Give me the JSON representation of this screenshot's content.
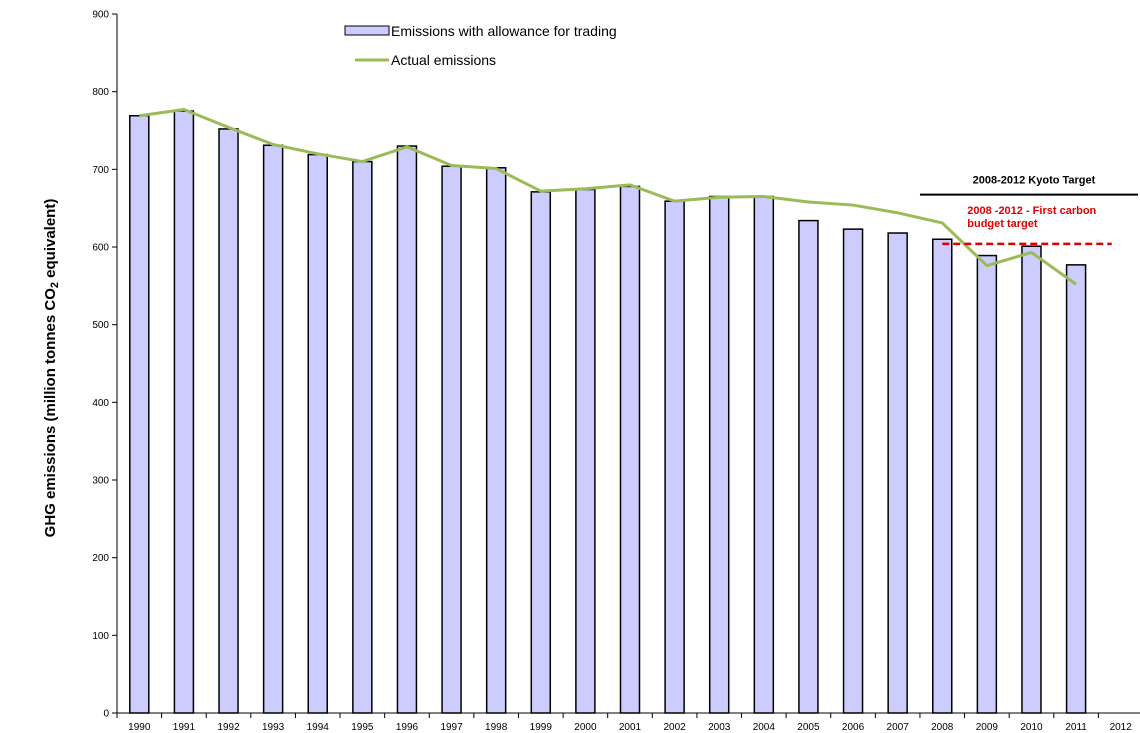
{
  "chart_data": {
    "type": "bar",
    "categories": [
      "1990",
      "1991",
      "1992",
      "1993",
      "1994",
      "1995",
      "1996",
      "1997",
      "1998",
      "1999",
      "2000",
      "2001",
      "2002",
      "2003",
      "2004",
      "2005",
      "2006",
      "2007",
      "2008",
      "2009",
      "2010",
      "2011",
      "2012"
    ],
    "ylabel_pre": "GHG emissions (million tonnes CO",
    "ylabel_sub": "2",
    "ylabel_post": " equivalent)",
    "ylim": [
      0,
      900
    ],
    "yticks": [
      0,
      100,
      200,
      300,
      400,
      500,
      600,
      700,
      800,
      900
    ],
    "legend_position": "top-center",
    "grid": false,
    "series": [
      {
        "name": "Emissions with allowance for trading",
        "type": "bar",
        "color": "#ccccff",
        "values": [
          769,
          775,
          752,
          731,
          719,
          710,
          730,
          704,
          702,
          671,
          674,
          678,
          659,
          665,
          665,
          634,
          623,
          618,
          610,
          589,
          601,
          577,
          null
        ]
      },
      {
        "name": "Actual emissions",
        "type": "line",
        "color": "#9bbb59",
        "values": [
          769,
          777,
          754,
          732,
          720,
          710,
          729,
          705,
          701,
          672,
          675,
          680,
          659,
          664,
          665,
          658,
          654,
          644,
          631,
          576,
          593,
          552,
          null
        ]
      }
    ],
    "annotations": {
      "kyoto": {
        "label": "2008-2012  Kyoto Target",
        "value": 670,
        "from": "2008",
        "to": "2012"
      },
      "carbon_budget": {
        "line1": "2008 -2012  - First carbon",
        "line2": "budget target",
        "value": 604,
        "from": "2008",
        "to": "2012",
        "color": "#e00000"
      }
    }
  }
}
